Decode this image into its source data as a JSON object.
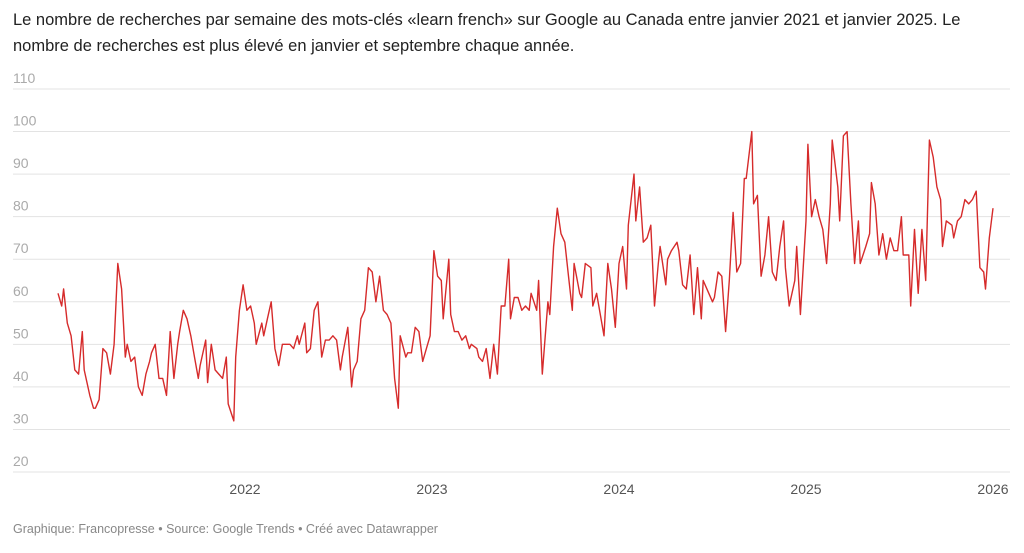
{
  "title": "Le nombre de recherches par semaine des mots-clés «learn french» sur Google au Canada entre janvier 2021 et janvier 2025. Le nombre de recherches est plus élevé en janvier et septembre chaque année.",
  "footer": "Graphique: Francopresse • Source: Google Trends • Créé avec Datawrapper",
  "chart_data": {
    "type": "line",
    "title": "",
    "xlabel": "",
    "ylabel": "",
    "ylim": [
      20,
      110
    ],
    "xlim": [
      2021,
      2026
    ],
    "grid": true,
    "yticks": [
      20,
      30,
      40,
      50,
      60,
      70,
      80,
      90,
      100,
      110
    ],
    "xticks": [
      2022,
      2023,
      2024,
      2025,
      2026
    ],
    "line_color": "#d62b2b",
    "x": [
      2021.0,
      2021.02,
      2021.03,
      2021.05,
      2021.07,
      2021.09,
      2021.11,
      2021.13,
      2021.14,
      2021.17,
      2021.19,
      2021.2,
      2021.22,
      2021.24,
      2021.26,
      2021.28,
      2021.3,
      2021.32,
      2021.34,
      2021.36,
      2021.37,
      2021.39,
      2021.41,
      2021.43,
      2021.45,
      2021.47,
      2021.49,
      2021.5,
      2021.52,
      2021.54,
      2021.56,
      2021.58,
      2021.6,
      2021.62,
      2021.64,
      2021.65,
      2021.67,
      2021.69,
      2021.71,
      2021.73,
      2021.75,
      2021.76,
      2021.79,
      2021.8,
      2021.82,
      2021.84,
      2021.86,
      2021.88,
      2021.9,
      2021.91,
      2021.94,
      2021.95,
      2021.97,
      2021.99,
      2022.01,
      2022.03,
      2022.05,
      2022.06,
      2022.09,
      2022.1,
      2022.12,
      2022.14,
      2022.16,
      2022.18,
      2022.2,
      2022.22,
      2022.24,
      2022.26,
      2022.28,
      2022.29,
      2022.32,
      2022.33,
      2022.35,
      2022.37,
      2022.39,
      2022.41,
      2022.43,
      2022.45,
      2022.47,
      2022.49,
      2022.51,
      2022.52,
      2022.55,
      2022.57,
      2022.58,
      2022.6,
      2022.62,
      2022.64,
      2022.66,
      2022.68,
      2022.7,
      2022.72,
      2022.74,
      2022.76,
      2022.78,
      2022.8,
      2022.82,
      2022.83,
      2022.86,
      2022.87,
      2022.89,
      2022.91,
      2022.93,
      2022.95,
      2022.97,
      2022.99,
      2023.01,
      2023.03,
      2023.05,
      2023.06,
      2023.09,
      2023.1,
      2023.12,
      2023.14,
      2023.16,
      2023.18,
      2023.2,
      2023.21,
      2023.24,
      2023.25,
      2023.27,
      2023.29,
      2023.31,
      2023.33,
      2023.35,
      2023.37,
      2023.39,
      2023.41,
      2023.42,
      2023.44,
      2023.46,
      2023.48,
      2023.5,
      2023.52,
      2023.53,
      2023.56,
      2023.57,
      2023.59,
      2023.62,
      2023.63,
      2023.65,
      2023.67,
      2023.69,
      2023.71,
      2023.73,
      2023.75,
      2023.76,
      2023.79,
      2023.8,
      2023.82,
      2023.85,
      2023.86,
      2023.88,
      2023.9,
      2023.92,
      2023.94,
      2023.96,
      2023.98,
      2024.0,
      2024.02,
      2024.04,
      2024.05,
      2024.08,
      2024.09,
      2024.11,
      2024.13,
      2024.15,
      2024.17,
      2024.19,
      2024.21,
      2024.22,
      2024.25,
      2024.26,
      2024.28,
      2024.31,
      2024.32,
      2024.34,
      2024.36,
      2024.38,
      2024.4,
      2024.42,
      2024.44,
      2024.45,
      2024.48,
      2024.5,
      2024.51,
      2024.53,
      2024.55,
      2024.57,
      2024.59,
      2024.61,
      2024.63,
      2024.65,
      2024.67,
      2024.68,
      2024.71,
      2024.72,
      2024.74,
      2024.76,
      2024.78,
      2024.8,
      2024.82,
      2024.84,
      2024.86,
      2024.88,
      2024.89,
      2024.91,
      2024.94,
      2024.95,
      2024.97,
      2025.0,
      2025.01,
      2025.03,
      2025.05,
      2025.07,
      2025.09,
      2025.11,
      2025.13,
      2025.14,
      2025.17,
      2025.18,
      2025.2,
      2025.22,
      2025.24,
      2025.26,
      2025.28,
      2025.29,
      2025.32,
      2025.34,
      2025.35,
      2025.37,
      2025.39,
      2025.41,
      2025.43,
      2025.45,
      2025.47,
      2025.49,
      2025.51,
      2025.52,
      2025.55,
      2025.56,
      2025.58,
      2025.6,
      2025.62,
      2025.64,
      2025.66,
      2025.68,
      2025.7,
      2025.72,
      2025.73,
      2025.75,
      2025.78,
      2025.79,
      2025.81,
      2025.83,
      2025.85,
      2025.87,
      2025.89,
      2025.91,
      2025.93,
      2025.95,
      2025.96,
      2025.98,
      2026.0
    ],
    "y": [
      62,
      59,
      63,
      55,
      52,
      44,
      43,
      53,
      44,
      38,
      35,
      35,
      37,
      49,
      48,
      43,
      50,
      69,
      63,
      47,
      50,
      46,
      47,
      40,
      38,
      43,
      46,
      48,
      50,
      42,
      42,
      38,
      53,
      42,
      50,
      53,
      58,
      56,
      52,
      47,
      42,
      45,
      51,
      41,
      50,
      44,
      43,
      42,
      47,
      36,
      32,
      47,
      58,
      64,
      58,
      59,
      55,
      50,
      55,
      52,
      56,
      60,
      49,
      45,
      50,
      50,
      50,
      49,
      52,
      50,
      55,
      48,
      49,
      58,
      60,
      47,
      51,
      51,
      52,
      51,
      44,
      47,
      54,
      40,
      44,
      46,
      56,
      58,
      68,
      67,
      60,
      66,
      58,
      57,
      55,
      42,
      35,
      52,
      47,
      48,
      48,
      54,
      53,
      46,
      49,
      52,
      72,
      66,
      65,
      56,
      70,
      57,
      53,
      53,
      51,
      52,
      49,
      50,
      49,
      47,
      46,
      49,
      42,
      50,
      43,
      59,
      59,
      70,
      56,
      61,
      61,
      58,
      59,
      58,
      62,
      58,
      65,
      43,
      60,
      57,
      73,
      82,
      76,
      74,
      66,
      58,
      69,
      62,
      61,
      69,
      68,
      59,
      62,
      57,
      52,
      69,
      63,
      54,
      69,
      73,
      63,
      78,
      90,
      79,
      87,
      74,
      75,
      78,
      59,
      69,
      73,
      64,
      70,
      72,
      74,
      72,
      64,
      63,
      71,
      57,
      68,
      56,
      65,
      62,
      60,
      61,
      67,
      66,
      53,
      65,
      81,
      67,
      69,
      89,
      89,
      100,
      83,
      85,
      66,
      71,
      80,
      67,
      65,
      73,
      79,
      68,
      59,
      65,
      73,
      57,
      79,
      97,
      80,
      84,
      80,
      77,
      69,
      83,
      98,
      87,
      79,
      99,
      100,
      83,
      69,
      79,
      69,
      73,
      76,
      88,
      83,
      71,
      76,
      70,
      75,
      72,
      72,
      80,
      71,
      71,
      59,
      77,
      62,
      77,
      65,
      98,
      94,
      87,
      84,
      73,
      79,
      78,
      75,
      79,
      80,
      84,
      83,
      84,
      86,
      68,
      67,
      63,
      75,
      82
    ]
  }
}
